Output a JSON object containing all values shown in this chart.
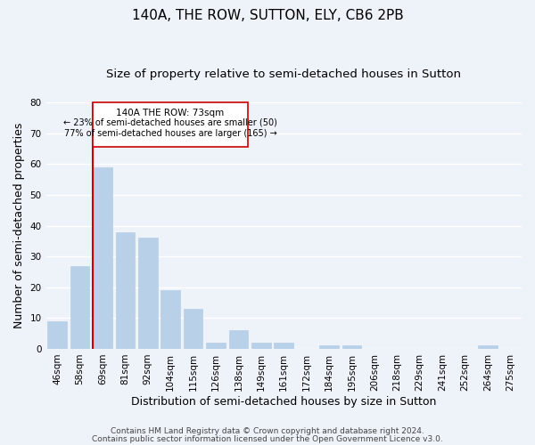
{
  "title": "140A, THE ROW, SUTTON, ELY, CB6 2PB",
  "subtitle": "Size of property relative to semi-detached houses in Sutton",
  "xlabel": "Distribution of semi-detached houses by size in Sutton",
  "ylabel": "Number of semi-detached properties",
  "bar_labels": [
    "46sqm",
    "58sqm",
    "69sqm",
    "81sqm",
    "92sqm",
    "104sqm",
    "115sqm",
    "126sqm",
    "138sqm",
    "149sqm",
    "161sqm",
    "172sqm",
    "184sqm",
    "195sqm",
    "206sqm",
    "218sqm",
    "229sqm",
    "241sqm",
    "252sqm",
    "264sqm",
    "275sqm"
  ],
  "bar_values": [
    9,
    27,
    59,
    38,
    36,
    19,
    13,
    2,
    6,
    2,
    2,
    0,
    1,
    1,
    0,
    0,
    0,
    0,
    0,
    1,
    0
  ],
  "bar_color": "#b8d0e8",
  "bar_edge_color": "#b8d0e8",
  "ylim": [
    0,
    80
  ],
  "yticks": [
    0,
    10,
    20,
    30,
    40,
    50,
    60,
    70,
    80
  ],
  "vline_color": "#cc0000",
  "vline_bar_index": 2,
  "annotation_title": "140A THE ROW: 73sqm",
  "annotation_line1": "← 23% of semi-detached houses are smaller (50)",
  "annotation_line2": "77% of semi-detached houses are larger (165) →",
  "annotation_box_color": "#ffffff",
  "annotation_box_edge": "#cc0000",
  "footer1": "Contains HM Land Registry data © Crown copyright and database right 2024.",
  "footer2": "Contains public sector information licensed under the Open Government Licence v3.0.",
  "background_color": "#eef2f9",
  "grid_color": "#ffffff",
  "title_fontsize": 11,
  "subtitle_fontsize": 9.5,
  "axis_label_fontsize": 9,
  "tick_fontsize": 7.5,
  "footer_fontsize": 6.5
}
